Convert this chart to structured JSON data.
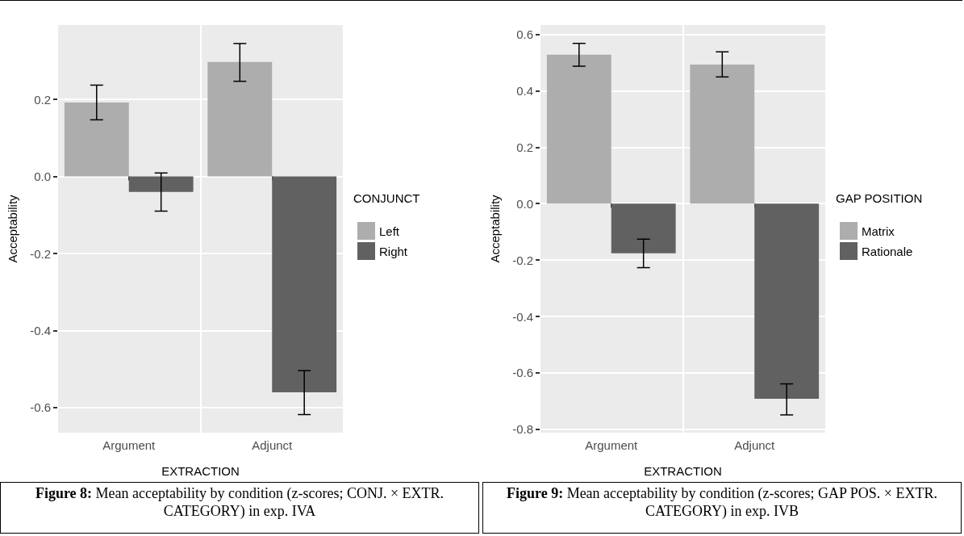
{
  "chart_data": [
    {
      "type": "bar",
      "xlabel": "EXTRACTION",
      "ylabel": "Acceptability",
      "legend_title": "CONJUNCT",
      "legend": "right",
      "grid": true,
      "categories": [
        "Argument",
        "Adjunct"
      ],
      "series": [
        {
          "name": "Left",
          "color": "#adadad",
          "values": [
            0.192,
            0.297
          ],
          "errors": [
            [
              0.147,
              0.237
            ],
            [
              0.247,
              0.345
            ]
          ]
        },
        {
          "name": "Right",
          "color": "#616161",
          "values": [
            -0.04,
            -0.56
          ],
          "errors": [
            [
              -0.09,
              0.009
            ],
            [
              -0.618,
              -0.504
            ]
          ]
        }
      ],
      "ylim": [
        -0.665,
        0.393
      ],
      "yticks": [
        -0.6,
        -0.4,
        -0.2,
        {
          "value": 0,
          "label": "0.0"
        },
        0.2
      ],
      "annotations": [
        "Figure 8: Mean acceptability by condition (z-scores; CONJ. × EXTR. CATEGORY) in exp. IVA"
      ]
    },
    {
      "type": "bar",
      "xlabel": "EXTRACTION",
      "ylabel": "Acceptability",
      "legend_title": "GAP POSITION",
      "legend": "right",
      "grid": true,
      "categories": [
        "Argument",
        "Adjunct"
      ],
      "series": [
        {
          "name": "Matrix",
          "color": "#adadad",
          "values": [
            0.528,
            0.493
          ],
          "errors": [
            [
              0.487,
              0.568
            ],
            [
              0.449,
              0.538
            ]
          ]
        },
        {
          "name": "Rationale",
          "color": "#616161",
          "values": [
            -0.176,
            -0.692
          ],
          "errors": [
            [
              -0.227,
              -0.126
            ],
            [
              -0.749,
              -0.639
            ]
          ]
        }
      ],
      "ylim": [
        -0.812,
        0.633
      ],
      "yticks": [
        -0.8,
        -0.6,
        -0.4,
        -0.2,
        {
          "value": 0,
          "label": "0.0"
        },
        0.2,
        0.4,
        0.6
      ],
      "annotations": [
        "Figure 9: Mean acceptability by condition (z-scores; GAP POS. × EXTR. CATEGORY) in exp. IVB"
      ]
    }
  ]
}
